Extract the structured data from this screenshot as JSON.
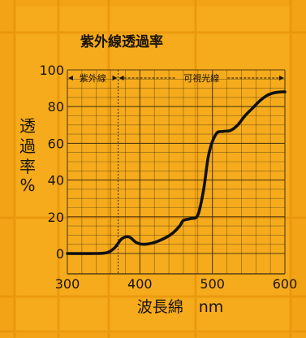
{
  "colors": {
    "background": "#f2a416",
    "sheet": "#f5ab1c",
    "grid": "#3a2a10",
    "line": "#111111",
    "text": "#1a1408"
  },
  "chart_data": {
    "type": "line",
    "title": "紫外線透過率",
    "xlabel": "波長綿　nm",
    "ylabel": [
      "透",
      "過",
      "率",
      "%"
    ],
    "xlim": [
      300,
      600
    ],
    "ylim": [
      0,
      100
    ],
    "xticks": [
      "300",
      "400",
      "500",
      "600"
    ],
    "yticks": [
      "0",
      "20",
      "40",
      "60",
      "80",
      "100"
    ],
    "grid": true,
    "regions": [
      {
        "label": "紫外線",
        "from": 300,
        "to": 370
      },
      {
        "label": "可視光線",
        "from": 370,
        "to": 600
      }
    ],
    "boundary_x": 370,
    "series": [
      {
        "x": [
          300,
          340,
          355,
          365,
          375,
          385,
          395,
          405,
          420,
          435,
          445,
          455,
          460,
          470,
          480,
          488,
          495,
          505,
          515,
          525,
          535,
          545,
          555,
          565,
          575,
          585,
          595,
          600
        ],
        "y": [
          0,
          0,
          0.5,
          3,
          8,
          9,
          6,
          5,
          6,
          8.5,
          11,
          15,
          18,
          19,
          21,
          35,
          54,
          65,
          66.5,
          67,
          70,
          75,
          79,
          83,
          86,
          87.5,
          88,
          88
        ]
      }
    ]
  }
}
